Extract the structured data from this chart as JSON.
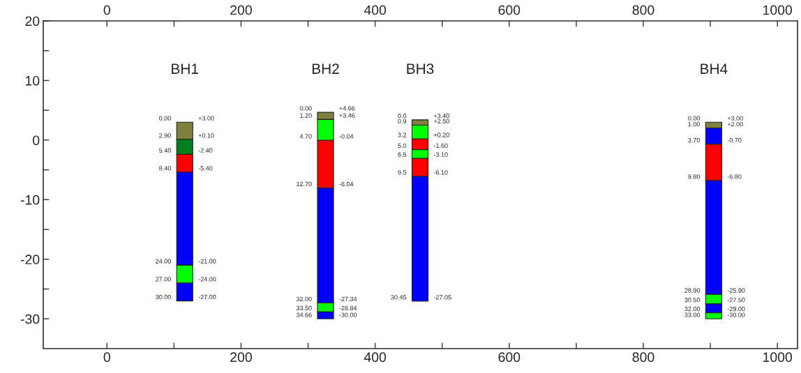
{
  "chart_data": {
    "type": "bar",
    "series": [
      {
        "x": [
          116,
          326,
          467,
          905
        ],
        "base": [
          0.1,
          3.46,
          2.5,
          2.0
        ],
        "values": [
          2.9,
          1.2,
          0.9,
          1.0
        ],
        "colors": [
          "#7f7f3f",
          "#7f7f3f",
          "#7f7f3f",
          "#7f7f3f"
        ]
      },
      {
        "x": [
          116,
          326,
          467,
          905
        ],
        "base": [
          -2.4,
          -0.04,
          0.2,
          -0.7
        ],
        "values": [
          2.5,
          3.5,
          2.3,
          2.7
        ],
        "colors": [
          "#007f1f",
          "#00ff00",
          "#00ff00",
          "#0000ff"
        ]
      },
      {
        "x": [
          116,
          326,
          467,
          905
        ],
        "base": [
          -5.4,
          -8.04,
          -1.6,
          -6.8
        ],
        "values": [
          3.0,
          8.0,
          1.8,
          6.1
        ],
        "colors": [
          "#ff0000",
          "#ff0000",
          "#ff0000",
          "#ff0000"
        ]
      },
      {
        "x": [
          116,
          326,
          467,
          905
        ],
        "base": [
          -21.0,
          -27.34,
          -3.1,
          -25.9
        ],
        "values": [
          15.6,
          19.3,
          1.5,
          19.1
        ],
        "colors": [
          "#0000ff",
          "#0000ff",
          "#00ff00",
          "#0000ff"
        ]
      },
      {
        "x": [
          116,
          326,
          467,
          905
        ],
        "base": [
          -24.0,
          -28.84,
          -6.1,
          -27.5
        ],
        "values": [
          3.0,
          1.5,
          3.0,
          1.6
        ],
        "colors": [
          "#00ff00",
          "#00ff00",
          "#ff0000",
          "#00ff00"
        ]
      },
      {
        "x": [
          116,
          326,
          467,
          905
        ],
        "base": [
          -27.0,
          -30.0,
          -27.05,
          -29.0
        ],
        "values": [
          3.0,
          1.16,
          20.95,
          1.5
        ],
        "colors": [
          "#0000ff",
          "#0000ff",
          "#0000ff",
          "#0000ff"
        ]
      },
      {
        "x": [
          905
        ],
        "base": [
          -30.0
        ],
        "values": [
          1.0
        ],
        "colors": [
          "#00ff00"
        ]
      }
    ],
    "xlim": [
      -95,
      1030
    ],
    "xticks": [
      0,
      {
        "value": 100,
        "label": null
      },
      200,
      {
        "value": 300,
        "label": null
      },
      400,
      {
        "value": 500,
        "label": null
      },
      600,
      {
        "value": 700,
        "label": null
      },
      800,
      {
        "value": 900,
        "label": null
      },
      1000
    ],
    "x2lim": [
      -95,
      1030
    ],
    "x2ticks": [
      0,
      {
        "value": 100,
        "label": null
      },
      200,
      {
        "value": 300,
        "label": null
      },
      400,
      {
        "value": 500,
        "label": null
      },
      600,
      {
        "value": 700,
        "label": null
      },
      800,
      {
        "value": 900,
        "label": null
      },
      1000
    ],
    "ylim": [
      -35,
      20
    ],
    "yticks": [
      -30,
      {
        "value": -25,
        "label": null
      },
      -20,
      {
        "value": -15,
        "label": null
      },
      -10,
      {
        "value": -5,
        "label": null
      },
      0,
      {
        "value": 5,
        "label": null
      },
      10,
      {
        "value": 15,
        "label": null
      },
      20
    ],
    "grid": false,
    "annotations": [
      "BH1",
      "BH2",
      "BH3",
      "BH4",
      {
        "text": "0.00",
        "x": 116,
        "y": 3.0
      },
      {
        "text": "+3.00",
        "x": 116,
        "y": 3.0
      },
      {
        "text": "2.90",
        "x": 116,
        "y": 0.1
      },
      {
        "text": "+0.10",
        "x": 116,
        "y": 0.1
      },
      {
        "text": "5.40",
        "x": 116,
        "y": -2.4
      },
      {
        "text": "-2.40",
        "x": 116,
        "y": -2.4
      },
      {
        "text": "8.40",
        "x": 116,
        "y": -5.4
      },
      {
        "text": "-5.40",
        "x": 116,
        "y": -5.4
      },
      {
        "text": "24.00",
        "x": 116,
        "y": -21.0
      },
      {
        "text": "-21.00",
        "x": 116,
        "y": -21.0
      },
      {
        "text": "27.00",
        "x": 116,
        "y": -24.0
      },
      {
        "text": "-24.00",
        "x": 116,
        "y": -24.0
      },
      {
        "text": "30.00",
        "x": 116,
        "y": -27.0
      },
      {
        "text": "-27.00",
        "x": 116,
        "y": -27.0
      },
      {
        "text": "0.00",
        "x": 326,
        "y": 4.66
      },
      {
        "text": "+4.66",
        "x": 326,
        "y": 4.66
      },
      {
        "text": "1.20",
        "x": 326,
        "y": 3.46
      },
      {
        "text": "+3.46",
        "x": 326,
        "y": 3.46
      },
      {
        "text": "4.70",
        "x": 326,
        "y": -0.04
      },
      {
        "text": "-0.04",
        "x": 326,
        "y": -0.04
      },
      {
        "text": "12.70",
        "x": 326,
        "y": -8.04
      },
      {
        "text": "-8.04",
        "x": 326,
        "y": -8.04
      },
      {
        "text": "32.00",
        "x": 326,
        "y": -27.34
      },
      {
        "text": "-27.34",
        "x": 326,
        "y": -27.34
      },
      {
        "text": "33.50",
        "x": 326,
        "y": -28.84
      },
      {
        "text": "-28.84",
        "x": 326,
        "y": -28.84
      },
      {
        "text": "34.66",
        "x": 326,
        "y": -30.0
      },
      {
        "text": "-30.00",
        "x": 326,
        "y": -30.0
      },
      {
        "text": "0.0",
        "x": 467,
        "y": 3.4
      },
      {
        "text": "+3.40",
        "x": 467,
        "y": 3.4
      },
      {
        "text": "0.9",
        "x": 467,
        "y": 2.5
      },
      {
        "text": "+2.50",
        "x": 467,
        "y": 2.5
      },
      {
        "text": "3.2",
        "x": 467,
        "y": 0.2
      },
      {
        "text": "+0.20",
        "x": 467,
        "y": 0.2
      },
      {
        "text": "5.0",
        "x": 467,
        "y": -1.6
      },
      {
        "text": "-1.60",
        "x": 467,
        "y": -1.6
      },
      {
        "text": "6.5",
        "x": 467,
        "y": -3.1
      },
      {
        "text": "-3.10",
        "x": 467,
        "y": -3.1
      },
      {
        "text": "9.5",
        "x": 467,
        "y": -6.1
      },
      {
        "text": "-6.10",
        "x": 467,
        "y": -6.1
      },
      {
        "text": "30.45",
        "x": 467,
        "y": -27.05
      },
      {
        "text": "-27.05",
        "x": 467,
        "y": -27.05
      },
      {
        "text": "0.00",
        "x": 905,
        "y": 3.0
      },
      {
        "text": "+3.00",
        "x": 905,
        "y": 3.0
      },
      {
        "text": "1.00",
        "x": 905,
        "y": 2.0
      },
      {
        "text": "+2.00",
        "x": 905,
        "y": 2.0
      },
      {
        "text": "3.70",
        "x": 905,
        "y": -0.7
      },
      {
        "text": "-0.70",
        "x": 905,
        "y": -0.7
      },
      {
        "text": "9.80",
        "x": 905,
        "y": -6.8
      },
      {
        "text": "-6.80",
        "x": 905,
        "y": -6.8
      },
      {
        "text": "28.90",
        "x": 905,
        "y": -25.9
      },
      {
        "text": "-25.90",
        "x": 905,
        "y": -25.9
      },
      {
        "text": "30.50",
        "x": 905,
        "y": -27.5
      },
      {
        "text": "-27.50",
        "x": 905,
        "y": -27.5
      },
      {
        "text": "32.00",
        "x": 905,
        "y": -29.0
      },
      {
        "text": "-29.00",
        "x": 905,
        "y": -29.0
      },
      {
        "text": "33.00",
        "x": 905,
        "y": -30.0
      },
      {
        "text": "-30.00",
        "x": 905,
        "y": -30.0
      }
    ]
  }
}
